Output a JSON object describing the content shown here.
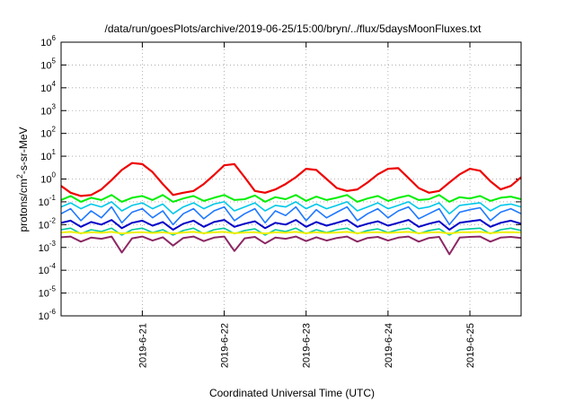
{
  "chart_data": {
    "type": "line",
    "title": "/data/run/goesPlots/archive/2019-06-25/15:00/bryn/../flux/5daysMoonFluxes.txt",
    "xlabel": "Coordinated Universal Time (UTC)",
    "ylabel": "protons/cm2-s-sr-MeV",
    "ylabel_parts": {
      "prefix": "protons/cm",
      "superscript": "2",
      "suffix": "-s-sr-MeV"
    },
    "y_scale": "log",
    "ylim": [
      1e-06,
      1000000.0
    ],
    "xlim": [
      "2019-06-20T00:12",
      "2019-06-25T15:00"
    ],
    "grid": true,
    "y_ticks": [
      {
        "base": "10",
        "exp": "-6",
        "value": 1e-06
      },
      {
        "base": "10",
        "exp": "-5",
        "value": 1e-05
      },
      {
        "base": "10",
        "exp": "-4",
        "value": 0.0001
      },
      {
        "base": "10",
        "exp": "-3",
        "value": 0.001
      },
      {
        "base": "10",
        "exp": "-2",
        "value": 0.01
      },
      {
        "base": "10",
        "exp": "-1",
        "value": 0.1
      },
      {
        "base": "10",
        "exp": "0",
        "value": 1
      },
      {
        "base": "10",
        "exp": "1",
        "value": 10
      },
      {
        "base": "10",
        "exp": "2",
        "value": 100
      },
      {
        "base": "10",
        "exp": "3",
        "value": 1000
      },
      {
        "base": "10",
        "exp": "4",
        "value": 10000
      },
      {
        "base": "10",
        "exp": "5",
        "value": 100000
      },
      {
        "base": "10",
        "exp": "6",
        "value": 1000000
      }
    ],
    "x_ticks": [
      {
        "label": "2019-6-21",
        "value": "2019-06-21T00:00"
      },
      {
        "label": "2019-6-22",
        "value": "2019-06-22T00:00"
      },
      {
        "label": "2019-6-23",
        "value": "2019-06-23T00:00"
      },
      {
        "label": "2019-6-24",
        "value": "2019-06-24T00:00"
      },
      {
        "label": "2019-6-25",
        "value": "2019-06-25T00:00"
      }
    ],
    "x": [
      "2019-06-20T00:12",
      "2019-06-20T03:00",
      "2019-06-20T06:00",
      "2019-06-20T09:00",
      "2019-06-20T12:00",
      "2019-06-20T15:00",
      "2019-06-20T18:00",
      "2019-06-20T21:00",
      "2019-06-21T00:00",
      "2019-06-21T03:00",
      "2019-06-21T06:00",
      "2019-06-21T09:00",
      "2019-06-21T12:00",
      "2019-06-21T15:00",
      "2019-06-21T18:00",
      "2019-06-21T21:00",
      "2019-06-22T00:00",
      "2019-06-22T03:00",
      "2019-06-22T06:00",
      "2019-06-22T09:00",
      "2019-06-22T12:00",
      "2019-06-22T15:00",
      "2019-06-22T18:00",
      "2019-06-22T21:00",
      "2019-06-23T00:00",
      "2019-06-23T03:00",
      "2019-06-23T06:00",
      "2019-06-23T09:00",
      "2019-06-23T12:00",
      "2019-06-23T15:00",
      "2019-06-23T18:00",
      "2019-06-23T21:00",
      "2019-06-24T00:00",
      "2019-06-24T03:00",
      "2019-06-24T06:00",
      "2019-06-24T09:00",
      "2019-06-24T12:00",
      "2019-06-24T15:00",
      "2019-06-24T18:00",
      "2019-06-24T21:00",
      "2019-06-25T00:00",
      "2019-06-25T03:00",
      "2019-06-25T06:00",
      "2019-06-25T09:00",
      "2019-06-25T12:00",
      "2019-06-25T15:00"
    ],
    "series": [
      {
        "color": "#ee0000",
        "width": 2.2,
        "values": [
          0.5,
          0.25,
          0.18,
          0.2,
          0.35,
          0.9,
          2.5,
          5,
          4.5,
          2,
          0.6,
          0.2,
          0.25,
          0.3,
          0.6,
          1.5,
          4,
          4.5,
          1.2,
          0.3,
          0.25,
          0.35,
          0.6,
          1.2,
          2.8,
          2.5,
          1,
          0.4,
          0.3,
          0.35,
          0.7,
          1.6,
          2.8,
          3,
          1.1,
          0.4,
          0.25,
          0.3,
          0.7,
          1.6,
          2.8,
          2.3,
          0.8,
          0.35,
          0.5,
          1.2
        ]
      },
      {
        "color": "#00ee00",
        "width": 2,
        "values": [
          0.12,
          0.18,
          0.1,
          0.15,
          0.12,
          0.2,
          0.1,
          0.15,
          0.18,
          0.12,
          0.2,
          0.1,
          0.14,
          0.18,
          0.11,
          0.15,
          0.2,
          0.12,
          0.13,
          0.19,
          0.1,
          0.16,
          0.13,
          0.2,
          0.11,
          0.17,
          0.12,
          0.15,
          0.2,
          0.1,
          0.14,
          0.18,
          0.11,
          0.15,
          0.19,
          0.12,
          0.13,
          0.2,
          0.1,
          0.16,
          0.14,
          0.18,
          0.11,
          0.15,
          0.17,
          0.13
        ]
      },
      {
        "color": "#00c8e8",
        "width": 1.6,
        "values": [
          0.06,
          0.09,
          0.05,
          0.08,
          0.06,
          0.1,
          0.04,
          0.07,
          0.09,
          0.05,
          0.08,
          0.03,
          0.06,
          0.09,
          0.05,
          0.08,
          0.1,
          0.04,
          0.06,
          0.09,
          0.04,
          0.07,
          0.06,
          0.1,
          0.05,
          0.08,
          0.05,
          0.07,
          0.1,
          0.04,
          0.06,
          0.09,
          0.05,
          0.07,
          0.1,
          0.05,
          0.06,
          0.09,
          0.03,
          0.07,
          0.08,
          0.09,
          0.04,
          0.07,
          0.08,
          0.06
        ]
      },
      {
        "color": "#1e78ff",
        "width": 1.6,
        "values": [
          0.03,
          0.05,
          0.015,
          0.04,
          0.02,
          0.06,
          0.012,
          0.035,
          0.05,
          0.02,
          0.04,
          0.01,
          0.03,
          0.05,
          0.018,
          0.04,
          0.06,
          0.015,
          0.03,
          0.05,
          0.012,
          0.04,
          0.025,
          0.06,
          0.015,
          0.045,
          0.02,
          0.035,
          0.06,
          0.015,
          0.03,
          0.05,
          0.02,
          0.04,
          0.06,
          0.018,
          0.03,
          0.05,
          0.01,
          0.035,
          0.045,
          0.055,
          0.015,
          0.035,
          0.05,
          0.03
        ]
      },
      {
        "color": "#0000c8",
        "width": 2,
        "values": [
          0.012,
          0.015,
          0.008,
          0.013,
          0.01,
          0.016,
          0.007,
          0.012,
          0.015,
          0.009,
          0.013,
          0.006,
          0.011,
          0.015,
          0.008,
          0.013,
          0.016,
          0.008,
          0.011,
          0.014,
          0.007,
          0.012,
          0.01,
          0.016,
          0.008,
          0.013,
          0.009,
          0.012,
          0.016,
          0.008,
          0.011,
          0.014,
          0.009,
          0.012,
          0.016,
          0.008,
          0.011,
          0.014,
          0.006,
          0.012,
          0.014,
          0.016,
          0.008,
          0.012,
          0.015,
          0.011
        ]
      },
      {
        "color": "#00c8a0",
        "width": 1.6,
        "values": [
          0.006,
          0.007,
          0.004,
          0.006,
          0.005,
          0.007,
          0.0035,
          0.006,
          0.007,
          0.0045,
          0.006,
          0.0035,
          0.0055,
          0.007,
          0.004,
          0.006,
          0.007,
          0.004,
          0.0055,
          0.0065,
          0.0035,
          0.006,
          0.005,
          0.007,
          0.004,
          0.006,
          0.0045,
          0.006,
          0.007,
          0.004,
          0.0055,
          0.0065,
          0.0045,
          0.006,
          0.007,
          0.004,
          0.0055,
          0.0065,
          0.0035,
          0.006,
          0.0065,
          0.007,
          0.004,
          0.006,
          0.007,
          0.0055
        ]
      },
      {
        "color": "#f0f000",
        "width": 2,
        "values": [
          0.0045,
          0.0048,
          0.0042,
          0.0046,
          0.0044,
          0.0048,
          0.0041,
          0.0045,
          0.0047,
          0.0043,
          0.0046,
          0.0041,
          0.0045,
          0.0048,
          0.0042,
          0.0046,
          0.0048,
          0.0042,
          0.0045,
          0.0047,
          0.0041,
          0.0046,
          0.0044,
          0.0048,
          0.0042,
          0.0046,
          0.0043,
          0.0045,
          0.0048,
          0.0042,
          0.0045,
          0.0047,
          0.0043,
          0.0046,
          0.0048,
          0.0042,
          0.0045,
          0.0047,
          0.0041,
          0.0046,
          0.0047,
          0.0048,
          0.0042,
          0.0046,
          0.0047,
          0.0045
        ]
      },
      {
        "color": "#8c2864",
        "width": 2,
        "values": [
          0.0028,
          0.003,
          0.0018,
          0.0027,
          0.0024,
          0.003,
          0.0006,
          0.0025,
          0.003,
          0.002,
          0.0028,
          0.0012,
          0.0026,
          0.003,
          0.0019,
          0.0027,
          0.003,
          0.0007,
          0.0025,
          0.0029,
          0.0015,
          0.0027,
          0.0024,
          0.003,
          0.0019,
          0.0028,
          0.002,
          0.0026,
          0.003,
          0.0018,
          0.0026,
          0.0029,
          0.002,
          0.0027,
          0.003,
          0.0018,
          0.0026,
          0.0029,
          0.0005,
          0.0027,
          0.0029,
          0.003,
          0.0018,
          0.0027,
          0.0029,
          0.0026
        ]
      }
    ]
  }
}
